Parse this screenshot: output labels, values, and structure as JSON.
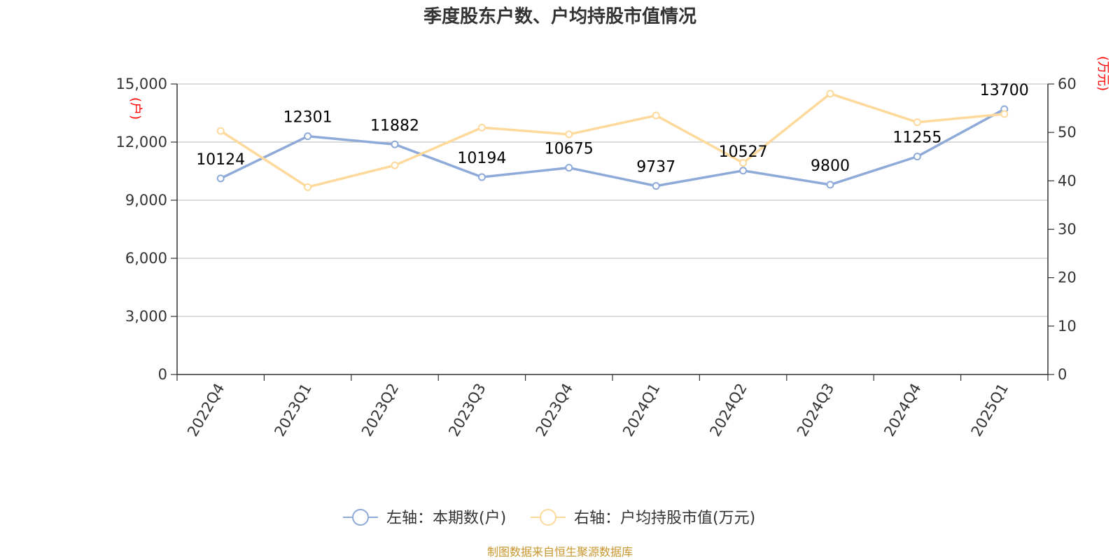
{
  "chart_data": {
    "type": "line",
    "title": "季度股东户数、户均持股市值情况",
    "categories": [
      "2022Q4",
      "2023Q1",
      "2023Q2",
      "2023Q3",
      "2023Q4",
      "2024Q1",
      "2024Q2",
      "2024Q3",
      "2024Q4",
      "2025Q1"
    ],
    "left_axis": {
      "unit": "(户)",
      "ylim": [
        0,
        15000
      ],
      "ticks": [
        0,
        3000,
        6000,
        9000,
        12000,
        15000
      ],
      "tick_labels": [
        "0",
        "3,000",
        "6,000",
        "9,000",
        "12,000",
        "15,000"
      ]
    },
    "right_axis": {
      "unit": "(万元)",
      "ylim": [
        0,
        60
      ],
      "ticks": [
        0,
        10,
        20,
        30,
        40,
        50,
        60
      ],
      "tick_labels": [
        "0",
        "10",
        "20",
        "30",
        "40",
        "50",
        "60"
      ]
    },
    "grid": true,
    "legend_position": "bottom",
    "series": [
      {
        "name": "左轴：本期数(户)",
        "axis": "left",
        "color": "#8eaad8",
        "values": [
          10124,
          12301,
          11882,
          10194,
          10675,
          9737,
          10527,
          9800,
          11255,
          13700
        ],
        "data_labels": [
          "10124",
          "12301",
          "11882",
          "10194",
          "10675",
          "9737",
          "10527",
          "9800",
          "11255",
          "13700"
        ]
      },
      {
        "name": "右轴：户均持股市值(万元)",
        "axis": "right",
        "color": "#fdd99c",
        "values": [
          50.3,
          38.7,
          43.2,
          51.0,
          49.6,
          53.5,
          43.7,
          58.0,
          52.1,
          53.8
        ]
      }
    ],
    "source": "制图数据来自恒生聚源数据库"
  }
}
